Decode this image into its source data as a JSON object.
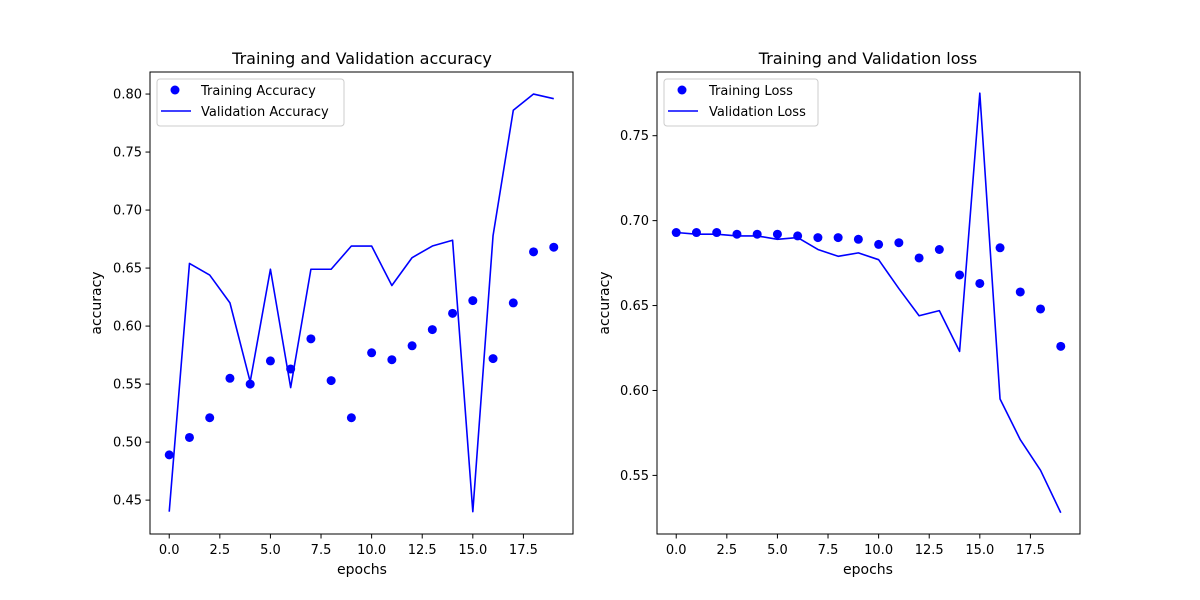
{
  "chart_data": [
    {
      "type": "line",
      "title": "Training and Validation accuracy",
      "xlabel": "epochs",
      "ylabel": "accuracy",
      "xlim": [
        -0.95,
        19.95
      ],
      "ylim": [
        0.4208,
        0.819
      ],
      "xticks": [
        0.0,
        2.5,
        5.0,
        7.5,
        10.0,
        12.5,
        15.0,
        17.5
      ],
      "xtick_labels": [
        "0.0",
        "2.5",
        "5.0",
        "7.5",
        "10.0",
        "12.5",
        "15.0",
        "17.5"
      ],
      "yticks": [
        0.45,
        0.5,
        0.55,
        0.6,
        0.65,
        0.7,
        0.75,
        0.8
      ],
      "ytick_labels": [
        "0.45",
        "0.50",
        "0.55",
        "0.60",
        "0.65",
        "0.70",
        "0.75",
        "0.80"
      ],
      "grid": false,
      "legend": "top-left",
      "x": [
        0,
        1,
        2,
        3,
        4,
        5,
        6,
        7,
        8,
        9,
        10,
        11,
        12,
        13,
        14,
        15,
        16,
        17,
        18,
        19
      ],
      "series": [
        {
          "name": "Training Accuracy",
          "style": "markers",
          "color": "#0000ff",
          "values": [
            0.489,
            0.504,
            0.521,
            0.555,
            0.55,
            0.57,
            0.563,
            0.589,
            0.553,
            0.521,
            0.577,
            0.571,
            0.583,
            0.597,
            0.611,
            0.622,
            0.572,
            0.62,
            0.664,
            0.668
          ]
        },
        {
          "name": "Validation Accuracy",
          "style": "line",
          "color": "#0000ff",
          "values": [
            0.44,
            0.654,
            0.644,
            0.62,
            0.552,
            0.649,
            0.547,
            0.649,
            0.649,
            0.669,
            0.669,
            0.635,
            0.659,
            0.669,
            0.674,
            0.44,
            0.678,
            0.786,
            0.8,
            0.796
          ]
        }
      ]
    },
    {
      "type": "line",
      "title": "Training and Validation loss",
      "xlabel": "epochs",
      "ylabel": "accuracy",
      "xlim": [
        -0.95,
        19.95
      ],
      "ylim": [
        0.5155,
        0.7875
      ],
      "xticks": [
        0.0,
        2.5,
        5.0,
        7.5,
        10.0,
        12.5,
        15.0,
        17.5
      ],
      "xtick_labels": [
        "0.0",
        "2.5",
        "5.0",
        "7.5",
        "10.0",
        "12.5",
        "15.0",
        "17.5"
      ],
      "yticks": [
        0.55,
        0.6,
        0.65,
        0.7,
        0.75
      ],
      "ytick_labels": [
        "0.55",
        "0.60",
        "0.65",
        "0.70",
        "0.75"
      ],
      "grid": false,
      "legend": "top-left",
      "x": [
        0,
        1,
        2,
        3,
        4,
        5,
        6,
        7,
        8,
        9,
        10,
        11,
        12,
        13,
        14,
        15,
        16,
        17,
        18,
        19
      ],
      "series": [
        {
          "name": "Training Loss",
          "style": "markers",
          "color": "#0000ff",
          "values": [
            0.693,
            0.693,
            0.693,
            0.692,
            0.692,
            0.692,
            0.691,
            0.69,
            0.69,
            0.689,
            0.686,
            0.687,
            0.678,
            0.683,
            0.668,
            0.663,
            0.684,
            0.658,
            0.648,
            0.626
          ]
        },
        {
          "name": "Validation Loss",
          "style": "line",
          "color": "#0000ff",
          "values": [
            0.693,
            0.692,
            0.692,
            0.691,
            0.691,
            0.689,
            0.69,
            0.683,
            0.679,
            0.681,
            0.677,
            0.66,
            0.644,
            0.647,
            0.623,
            0.775,
            0.595,
            0.571,
            0.553,
            0.528
          ]
        }
      ]
    }
  ]
}
